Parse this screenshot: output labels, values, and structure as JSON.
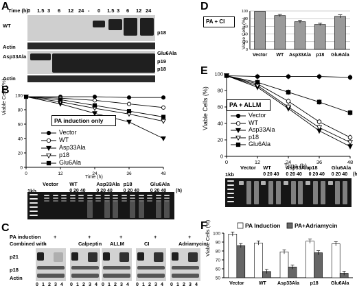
{
  "panelA": {
    "label": "A",
    "time_label": "Time (h)",
    "times": [
      "0",
      "1.5",
      "3",
      "6",
      "12",
      "24",
      "-",
      "0",
      "1.5",
      "3",
      "6",
      "12",
      "24"
    ],
    "rows": [
      "WT",
      "Actin",
      "Asp33Ala",
      "Actin"
    ],
    "right_labels": [
      "p18",
      "Glu6Ala",
      "p19",
      "p18"
    ]
  },
  "panelB": {
    "label": "B",
    "box_text": "PA induction only",
    "xlabel": "Time (h)",
    "ylabel": "Viable Cells (%)",
    "gel_lane_groups": [
      "Vector",
      "WT",
      "Asp33Ala",
      "p18",
      "Glu6Ala"
    ],
    "gel_lanes": "0 20 40",
    "gel_unit": "(h)",
    "ladder": "1kb"
  },
  "panelC": {
    "label": "C",
    "row1_label": "PA induction",
    "row2_label": "Combined with",
    "plus": "+",
    "treatments": [
      "-",
      "Calpeptin",
      "ALLM",
      "CI",
      "Adriamycin"
    ],
    "bands": [
      "p21",
      "p18",
      "Actin"
    ],
    "lanes": [
      "0",
      "1",
      "2",
      "3",
      "4"
    ]
  },
  "panelD": {
    "label": "D",
    "box_text": "PA + CI",
    "ylabel": "Viable Cells (%)"
  },
  "panelE": {
    "label": "E",
    "box_text": "PA + ALLM",
    "xlabel": "Time (h)",
    "ylabel": "Viable Cells (%)",
    "gel_lane_groups": [
      "Vector",
      "WT",
      "Asp33Ala",
      "p18",
      "Glu6Ala"
    ],
    "gel_lanes": "0 20 40",
    "gel_unit": "(h)",
    "ladder": "1kb"
  },
  "panelF": {
    "label": "F",
    "legend": [
      "PA Induction",
      "PA+Adriamycin"
    ],
    "ylabel": "Viable Cells (%)"
  },
  "chart_data": [
    {
      "id": "B",
      "type": "line",
      "x": [
        0,
        12,
        24,
        36,
        48
      ],
      "xlim": [
        0,
        48
      ],
      "ylim": [
        0,
        100
      ],
      "xticks": [
        0,
        12,
        24,
        36,
        48
      ],
      "yticks": [
        0,
        20,
        40,
        60,
        80,
        100
      ],
      "series": [
        {
          "name": "Vector",
          "marker": "filled-circle",
          "values": [
            98,
            98,
            98,
            97,
            97
          ]
        },
        {
          "name": "WT",
          "marker": "open-circle",
          "values": [
            98,
            96,
            93,
            88,
            83
          ]
        },
        {
          "name": "Asp33Ala",
          "marker": "filled-triangle",
          "values": [
            98,
            88,
            75,
            63,
            40
          ]
        },
        {
          "name": "p18",
          "marker": "open-triangle",
          "values": [
            98,
            91,
            82,
            74,
            64
          ]
        },
        {
          "name": "Glu6Ala",
          "marker": "filled-square",
          "values": [
            98,
            94,
            86,
            78,
            70
          ]
        }
      ]
    },
    {
      "id": "D",
      "type": "bar",
      "categories": [
        "Vector",
        "WT",
        "Asp33Ala",
        "p18",
        "Glu6Ala"
      ],
      "values": [
        99,
        88,
        72,
        65,
        86
      ],
      "errors": [
        0,
        3,
        4,
        3,
        4
      ],
      "ylim": [
        0,
        100
      ],
      "yticks": [
        0,
        20,
        40,
        60,
        80,
        100
      ]
    },
    {
      "id": "E",
      "type": "line",
      "x": [
        0,
        12,
        24,
        36,
        48
      ],
      "xlim": [
        0,
        48
      ],
      "ylim": [
        0,
        100
      ],
      "xticks": [
        0,
        12,
        24,
        36,
        48
      ],
      "yticks": [
        0,
        20,
        40,
        60,
        80,
        100
      ],
      "series": [
        {
          "name": "Vector",
          "marker": "filled-circle",
          "values": [
            98,
            97,
            97,
            97,
            96
          ]
        },
        {
          "name": "WT",
          "marker": "open-circle",
          "values": [
            98,
            88,
            67,
            42,
            23
          ]
        },
        {
          "name": "Asp33Ala",
          "marker": "filled-triangle",
          "values": [
            98,
            84,
            58,
            31,
            12
          ]
        },
        {
          "name": "p18",
          "marker": "open-triangle",
          "values": [
            98,
            86,
            60,
            35,
            17
          ]
        },
        {
          "name": "Glu6Ala",
          "marker": "filled-square",
          "values": [
            98,
            90,
            78,
            66,
            53
          ]
        }
      ]
    },
    {
      "id": "F",
      "type": "bar",
      "categories": [
        "Vector",
        "WT",
        "Asp33Ala",
        "p18",
        "Glu6Ala"
      ],
      "series": [
        {
          "name": "PA Induction",
          "color": "#ffffff",
          "values": [
            99,
            89,
            79,
            91,
            88
          ]
        },
        {
          "name": "PA+Adriamycin",
          "color": "#666666",
          "values": [
            86,
            57,
            62,
            78,
            55
          ]
        }
      ],
      "ylim": [
        50,
        100
      ],
      "yticks": [
        50,
        60,
        70,
        80,
        90,
        100
      ]
    }
  ]
}
